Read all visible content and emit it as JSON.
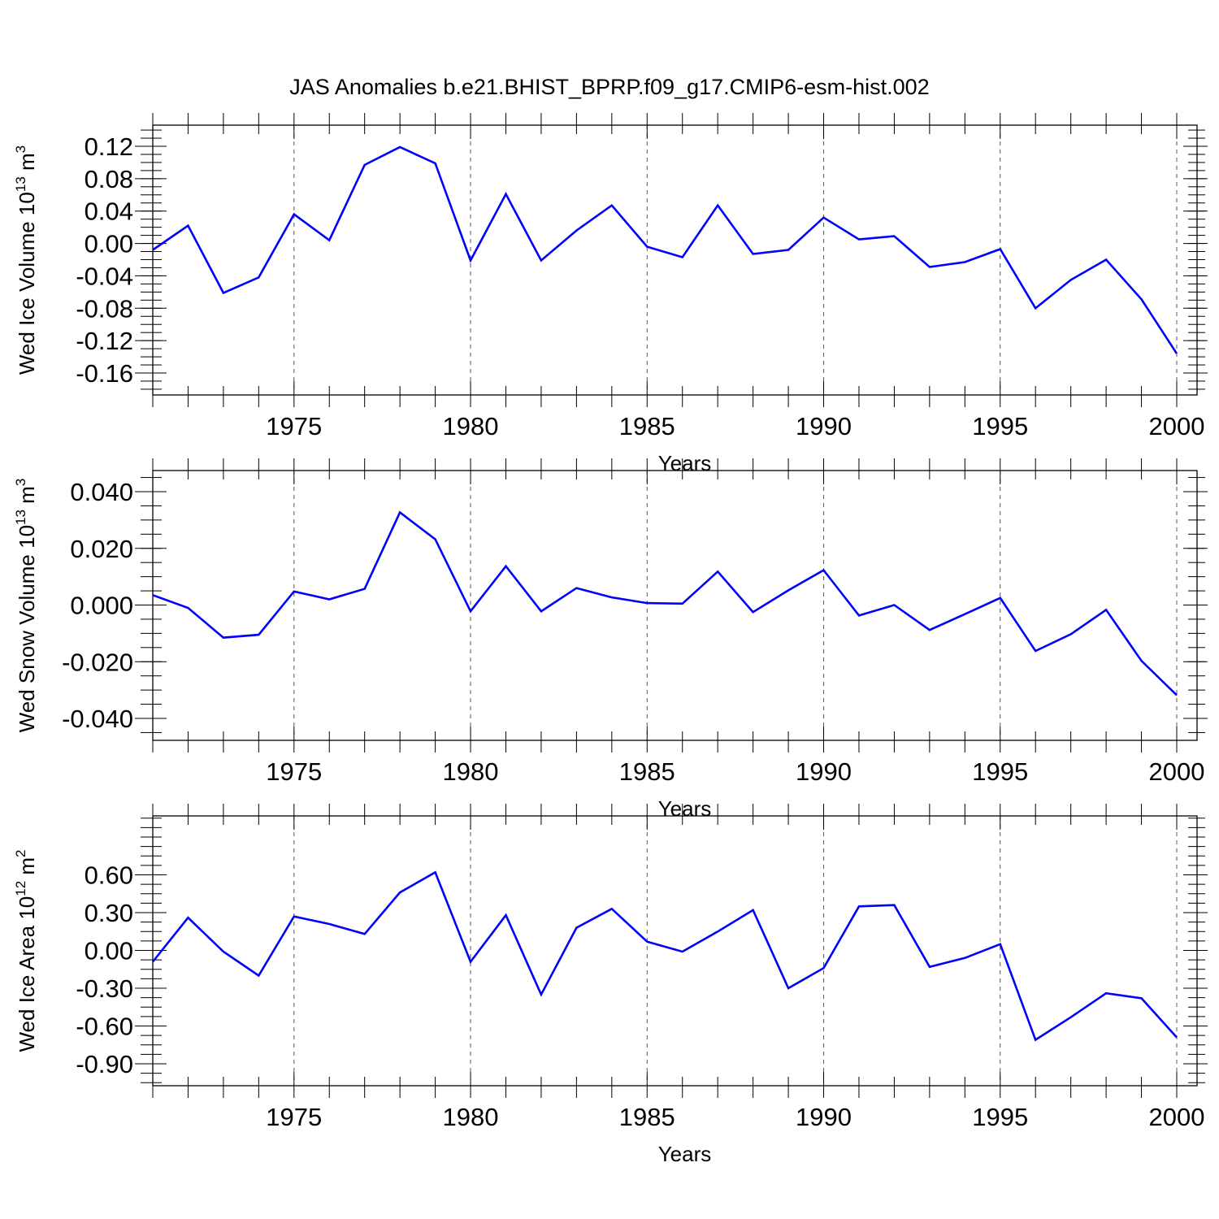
{
  "title": "JAS Anomalies b.e21.BHIST_BPRP.f09_g17.CMIP6-esm-hist.002",
  "line_color": "#0000ff",
  "chart_data": [
    {
      "type": "line",
      "ylabel": {
        "text": "Wed Ice Volume 10",
        "sup1": "13",
        "unit": " m",
        "sup2": "3"
      },
      "xlabel": "Years",
      "xlim": [
        1971,
        2000
      ],
      "ylim": [
        -0.16,
        0.12
      ],
      "yticks": [
        -0.16,
        -0.12,
        -0.08,
        -0.04,
        0.0,
        0.04,
        0.08,
        0.12
      ],
      "ytick_labels": [
        "-0.16",
        "-0.12",
        "-0.08",
        "-0.04",
        "0.00",
        "0.04",
        "0.08",
        "0.12"
      ],
      "yminor_step": 0.01,
      "xticks": [
        1975,
        1980,
        1985,
        1990,
        1995,
        2000
      ],
      "xtick_labels": [
        "1975",
        "1980",
        "1985",
        "1990",
        "1995",
        "2000"
      ],
      "grid": "vertical dashed at major x ticks",
      "x": [
        1971,
        1972,
        1973,
        1974,
        1975,
        1976,
        1977,
        1978,
        1979,
        1980,
        1981,
        1982,
        1983,
        1984,
        1985,
        1986,
        1987,
        1988,
        1989,
        1990,
        1991,
        1992,
        1993,
        1994,
        1995,
        1996,
        1997,
        1998,
        1999,
        2000
      ],
      "series": [
        {
          "values": [
            -0.008,
            0.022,
            -0.061,
            -0.042,
            0.036,
            0.004,
            0.097,
            0.119,
            0.099,
            -0.021,
            0.061,
            -0.021,
            0.016,
            0.047,
            -0.004,
            -0.017,
            0.047,
            -0.013,
            -0.008,
            0.032,
            0.005,
            0.009,
            -0.029,
            -0.023,
            -0.007,
            -0.08,
            -0.045,
            -0.02,
            -0.069,
            -0.136
          ]
        }
      ]
    },
    {
      "type": "line",
      "ylabel": {
        "text": "Wed Snow Volume 10",
        "sup1": "13",
        "unit": " m",
        "sup2": "3"
      },
      "xlabel": "Years",
      "xlim": [
        1971,
        2000
      ],
      "ylim": [
        -0.04,
        0.04
      ],
      "yticks": [
        -0.04,
        -0.02,
        0.0,
        0.02,
        0.04
      ],
      "ytick_labels": [
        "-0.040",
        "-0.020",
        "0.000",
        "0.020",
        "0.040"
      ],
      "yminor_step": 0.005,
      "xticks": [
        1975,
        1980,
        1985,
        1990,
        1995,
        2000
      ],
      "xtick_labels": [
        "1975",
        "1980",
        "1985",
        "1990",
        "1995",
        "2000"
      ],
      "grid": "vertical dashed at major x ticks",
      "x": [
        1971,
        1972,
        1973,
        1974,
        1975,
        1976,
        1977,
        1978,
        1979,
        1980,
        1981,
        1982,
        1983,
        1984,
        1985,
        1986,
        1987,
        1988,
        1989,
        1990,
        1991,
        1992,
        1993,
        1994,
        1995,
        1996,
        1997,
        1998,
        1999,
        2000
      ],
      "series": [
        {
          "values": [
            0.0035,
            -0.001,
            -0.0115,
            -0.0105,
            0.0048,
            0.002,
            0.0057,
            0.0327,
            0.0232,
            -0.0022,
            0.0137,
            -0.0022,
            0.006,
            0.0027,
            0.0007,
            0.0005,
            0.0118,
            -0.0025,
            0.0052,
            0.0123,
            -0.0037,
            0.0,
            -0.0088,
            -0.0032,
            0.0025,
            -0.0162,
            -0.0103,
            -0.0017,
            -0.0197,
            -0.0318
          ]
        }
      ]
    },
    {
      "type": "line",
      "ylabel": {
        "text": "Wed Ice Area 10",
        "sup1": "12",
        "unit": " m",
        "sup2": "2"
      },
      "xlabel": "Years",
      "xlim": [
        1971,
        2000
      ],
      "ylim": [
        -0.9,
        0.9
      ],
      "yticks": [
        -0.9,
        -0.6,
        -0.3,
        0.0,
        0.3,
        0.6
      ],
      "ytick_labels": [
        "-0.90",
        "-0.60",
        "-0.30",
        "0.00",
        "0.30",
        "0.60"
      ],
      "yminor_step": 0.075,
      "xticks": [
        1975,
        1980,
        1985,
        1990,
        1995,
        2000
      ],
      "xtick_labels": [
        "1975",
        "1980",
        "1985",
        "1990",
        "1995",
        "2000"
      ],
      "grid": "vertical dashed at major x ticks",
      "x": [
        1971,
        1972,
        1973,
        1974,
        1975,
        1976,
        1977,
        1978,
        1979,
        1980,
        1981,
        1982,
        1983,
        1984,
        1985,
        1986,
        1987,
        1988,
        1989,
        1990,
        1991,
        1992,
        1993,
        1994,
        1995,
        1996,
        1997,
        1998,
        1999,
        2000
      ],
      "series": [
        {
          "values": [
            -0.09,
            0.26,
            -0.01,
            -0.2,
            0.27,
            0.21,
            0.13,
            0.46,
            0.62,
            -0.09,
            0.28,
            -0.35,
            0.18,
            0.33,
            0.07,
            -0.01,
            0.15,
            0.32,
            -0.3,
            -0.14,
            0.35,
            0.36,
            -0.13,
            -0.06,
            0.05,
            -0.71,
            -0.53,
            -0.34,
            -0.38,
            -0.69
          ]
        }
      ]
    }
  ]
}
